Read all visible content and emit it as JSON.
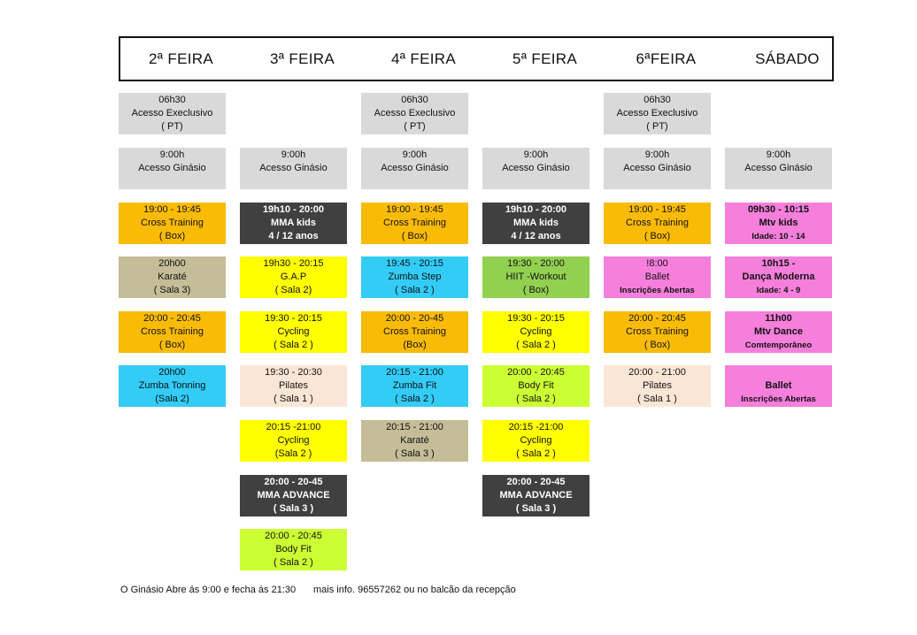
{
  "days": [
    "2ª FEIRA",
    "3ª FEIRA",
    "4ª FEIRA",
    "5ª FEIRA",
    "6ªFEIRA",
    "SÁBADO"
  ],
  "colors": {
    "gray": "#d9d9d9",
    "orange": "#f9bb05",
    "khaki": "#c4bd97",
    "cyan": "#33ccf7",
    "dark": "#404040",
    "yellow": "#ffff00",
    "peach": "#fbe6d6",
    "green": "#92d050",
    "lime": "#ccff33",
    "pink": "#f67fdc"
  },
  "schedule": {
    "mon": [
      {
        "lines": [
          "06h30",
          "Acesso Execlusivo",
          "( PT)"
        ]
      },
      {
        "lines": [
          "9:00h",
          "Acesso Ginásio"
        ]
      },
      {
        "lines": [
          "19:00 - 19:45",
          "Cross Training",
          "( Box)"
        ]
      },
      {
        "lines": [
          "20h00",
          "Karaté",
          "( Sala 3)"
        ]
      },
      {
        "lines": [
          "20:00 - 20:45",
          "Cross Training",
          "( Box)"
        ]
      },
      {
        "lines": [
          "20h00",
          "Zumba Tonning",
          "(Sala 2)"
        ]
      }
    ],
    "tue": [
      {
        "lines": [
          "9:00h",
          "Acesso Ginásio"
        ]
      },
      {
        "lines": [
          "19h10 - 20:00",
          "MMA kids",
          "4 / 12 anos"
        ]
      },
      {
        "lines": [
          "19h30 - 20:15",
          "G.A.P",
          "( Sala 2)"
        ]
      },
      {
        "lines": [
          "19:30 - 20:15",
          "Cycling",
          "( Sala 2 )"
        ]
      },
      {
        "lines": [
          "19:30 - 20:30",
          "Pilates",
          "( Sala 1 )"
        ]
      },
      {
        "lines": [
          "20:15 -21:00",
          "Cycling",
          "(Sala 2 )"
        ]
      },
      {
        "lines": [
          "20:00 - 20-45",
          "MMA ADVANCE",
          "( Sala 3 )"
        ]
      },
      {
        "lines": [
          "20:00 - 20:45",
          "Body Fit",
          "( Sala 2 )"
        ]
      }
    ],
    "wed": [
      {
        "lines": [
          "06h30",
          "Acesso Execlusivo",
          "( PT)"
        ]
      },
      {
        "lines": [
          "9:00h",
          "Acesso Ginásio"
        ]
      },
      {
        "lines": [
          "19:00 - 19:45",
          "Cross Training",
          "( Box)"
        ]
      },
      {
        "lines": [
          "19:45 - 20:15",
          "Zumba Step",
          "( Sala 2 )"
        ]
      },
      {
        "lines": [
          "20:00 - 20-45",
          "Cross Training",
          "(Box)"
        ]
      },
      {
        "lines": [
          "20:15 - 21:00",
          "Zumba Fit",
          "( Sala 2 )"
        ]
      },
      {
        "lines": [
          "20:15 - 21:00",
          "Karaté",
          "( Sala 3 )"
        ]
      }
    ],
    "thu": [
      {
        "lines": [
          "9:00h",
          "Acesso Ginásio"
        ]
      },
      {
        "lines": [
          "19h10 - 20:00",
          "MMA kids",
          "4 / 12 anos"
        ]
      },
      {
        "lines": [
          "19:30 - 20:00",
          "HIIT -Workout",
          "( Box)"
        ]
      },
      {
        "lines": [
          "19:30 - 20:15",
          "Cycling",
          "( Sala 2 )"
        ]
      },
      {
        "lines": [
          "20:00 - 20:45",
          "Body Fit",
          "( Sala 2 )"
        ]
      },
      {
        "lines": [
          "20:15 -21:00",
          "Cycling",
          "( Sala 2 )"
        ]
      },
      {
        "lines": [
          "20:00 - 20-45",
          "MMA ADVANCE",
          "( Sala 3 )"
        ]
      }
    ],
    "fri": [
      {
        "lines": [
          "06h30",
          "Acesso Execlusivo",
          "( PT)"
        ]
      },
      {
        "lines": [
          "9:00h",
          "Acesso Ginásio"
        ]
      },
      {
        "lines": [
          "19:00 - 19:45",
          "Cross Training",
          "( Box)"
        ]
      },
      {
        "lines": [
          "!8:00",
          "Ballet",
          "Inscrições Abertas"
        ]
      },
      {
        "lines": [
          "20:00 - 20:45",
          "Cross Training",
          "( Box)"
        ]
      },
      {
        "lines": [
          "20:00 - 21:00",
          "Pilates",
          "( Sala 1 )"
        ]
      }
    ],
    "sat": [
      {
        "lines": [
          "9:00h",
          "Acesso Ginásio"
        ]
      },
      {
        "lines": [
          "09h30 - 10:15",
          "Mtv kids",
          "Idade:  10 - 14"
        ]
      },
      {
        "lines": [
          "10h15 -",
          "Dança Moderna",
          "Idade:  4 - 9"
        ]
      },
      {
        "lines": [
          "11h00",
          "Mtv Dance",
          "Comtemporâneo"
        ]
      },
      {
        "lines": [
          "Ballet",
          "Inscrições Abertas"
        ]
      }
    ]
  },
  "footer": {
    "hours": "O Ginásio Abre ás 9:00 e fecha ás 21:30",
    "info": "mais info. 96557262 ou no balcão da recepção"
  }
}
